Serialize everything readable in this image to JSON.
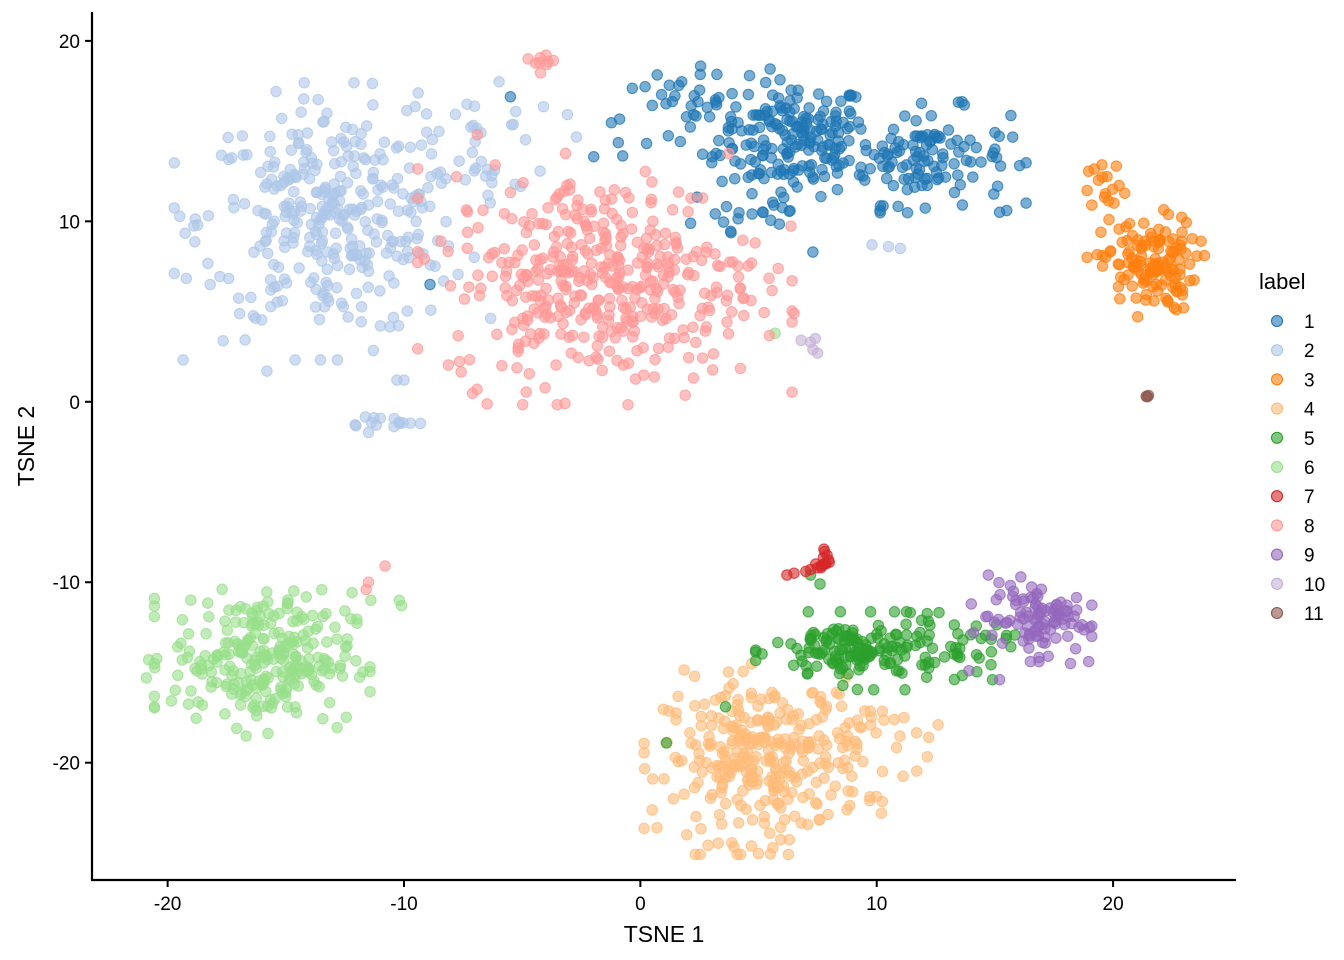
{
  "chart_data": {
    "type": "scatter",
    "title": "",
    "xlabel": "TSNE 1",
    "ylabel": "TSNE 2",
    "xlim": [
      -23.2,
      25.2
    ],
    "ylim": [
      -26.5,
      21.6
    ],
    "x_ticks": [
      -20,
      -10,
      0,
      10,
      20
    ],
    "y_ticks": [
      -20,
      -10,
      0,
      10,
      20
    ],
    "x_tick_labels": [
      "-20",
      "-10",
      "0",
      "10",
      "20"
    ],
    "y_tick_labels": [
      "-20",
      "-10",
      "0",
      "10",
      "20"
    ],
    "grid": false,
    "legend": {
      "title": "label",
      "placement": "right"
    },
    "point_opacity": 0.6,
    "series": [
      {
        "name": "1",
        "color": "#1f77b4",
        "clusters": [
          {
            "cx": 6.5,
            "cy": 14.6,
            "sx": 1.6,
            "sy": 1.6,
            "n": 170
          },
          {
            "cx": 12.0,
            "cy": 13.6,
            "sx": 1.8,
            "sy": 1.3,
            "n": 120
          },
          {
            "cx": 2.0,
            "cy": 15.8,
            "sx": 2.0,
            "sy": 1.2,
            "n": 45
          },
          {
            "cx": 4.5,
            "cy": 10.5,
            "sx": 1.5,
            "sy": 1.0,
            "n": 20
          }
        ],
        "points": [
          [
            -5.5,
            16.9
          ],
          [
            -8.9,
            6.5
          ],
          [
            15.5,
            10.6
          ],
          [
            15.2,
            10.5
          ],
          [
            7.3,
            8.3
          ]
        ]
      },
      {
        "name": "2",
        "color": "#aec7e8",
        "clusters": [
          {
            "cx": -13.0,
            "cy": 10.0,
            "sx": 2.8,
            "sy": 3.2,
            "n": 330
          },
          {
            "cx": -7.0,
            "cy": 14.5,
            "sx": 1.8,
            "sy": 1.8,
            "n": 40
          },
          {
            "cx": -11.2,
            "cy": -1.1,
            "sx": 0.8,
            "sy": 0.2,
            "n": 12
          }
        ],
        "points": [
          [
            -18.2,
            6.5
          ],
          [
            -15.8,
            1.7
          ],
          [
            -10.3,
            1.2
          ],
          [
            -10.0,
            1.2
          ],
          [
            9.8,
            8.7
          ],
          [
            10.5,
            8.6
          ],
          [
            11.0,
            8.5
          ],
          [
            -11.5,
            -1.7
          ],
          [
            -10.2,
            -1.2
          ],
          [
            -9.3,
            -1.2
          ]
        ]
      },
      {
        "name": "3",
        "color": "#ff7f0e",
        "clusters": [
          {
            "cx": 21.5,
            "cy": 7.6,
            "sx": 1.0,
            "sy": 1.3,
            "n": 130
          },
          {
            "cx": 19.8,
            "cy": 11.6,
            "sx": 0.4,
            "sy": 0.8,
            "n": 14
          }
        ],
        "points": [
          [
            22.9,
            8.9
          ],
          [
            22.7,
            6.1
          ],
          [
            19.2,
            12.9
          ],
          [
            19.1,
            10.9
          ],
          [
            18.9,
            8.0
          ]
        ]
      },
      {
        "name": "4",
        "color": "#ffbb78",
        "clusters": [
          {
            "cx": 5.2,
            "cy": -19.8,
            "sx": 2.1,
            "sy": 2.2,
            "n": 300
          },
          {
            "cx": 9.5,
            "cy": -18.8,
            "sx": 1.1,
            "sy": 1.2,
            "n": 30
          }
        ],
        "points": [
          [
            1.0,
            -20.9
          ],
          [
            1.4,
            -22.0
          ],
          [
            12.6,
            -17.9
          ],
          [
            12.2,
            -18.6
          ],
          [
            10.2,
            -22.8
          ]
        ]
      },
      {
        "name": "5",
        "color": "#2ca02c",
        "clusters": [
          {
            "cx": 9.2,
            "cy": -13.8,
            "sx": 1.8,
            "sy": 0.9,
            "n": 150
          },
          {
            "cx": 13.2,
            "cy": -13.6,
            "sx": 1.2,
            "sy": 0.8,
            "n": 35
          }
        ],
        "points": [
          [
            1.1,
            -18.9
          ],
          [
            3.6,
            -16.9
          ],
          [
            7.2,
            -9.6
          ],
          [
            7.6,
            -10.1
          ],
          [
            14.9,
            -15.4
          ]
        ]
      },
      {
        "name": "6",
        "color": "#98df8a",
        "clusters": [
          {
            "cx": -16.0,
            "cy": -14.2,
            "sx": 1.9,
            "sy": 1.8,
            "n": 270
          }
        ],
        "points": [
          [
            -20.9,
            -15.3
          ],
          [
            -20.8,
            -14.3
          ],
          [
            -12.6,
            -15.2
          ],
          [
            -10.2,
            -11.0
          ],
          [
            -10.1,
            -11.3
          ],
          [
            -11.4,
            -11.0
          ],
          [
            5.7,
            3.8
          ]
        ]
      },
      {
        "name": "7",
        "color": "#d62728",
        "clusters": [
          {
            "cx": 7.7,
            "cy": -8.8,
            "sx": 0.15,
            "sy": 0.3,
            "n": 10
          }
        ],
        "points": [
          [
            7.9,
            -8.5
          ],
          [
            7.5,
            -9.2
          ],
          [
            7.2,
            -9.3
          ],
          [
            7.0,
            -9.4
          ],
          [
            6.5,
            -9.5
          ],
          [
            6.2,
            -9.6
          ],
          [
            7.8,
            -8.3
          ]
        ]
      },
      {
        "name": "8",
        "color": "#ff9896",
        "clusters": [
          {
            "cx": -1.5,
            "cy": 6.8,
            "sx": 3.3,
            "sy": 2.9,
            "n": 420
          },
          {
            "cx": -4.3,
            "cy": 18.9,
            "sx": 0.3,
            "sy": 0.3,
            "n": 9
          }
        ],
        "points": [
          [
            -11.5,
            -10.0
          ],
          [
            -10.8,
            -9.1
          ],
          [
            -11.6,
            -10.4
          ],
          [
            -6.9,
            14.8
          ],
          [
            -5.5,
            11.6
          ],
          [
            6.5,
            4.9
          ]
        ]
      },
      {
        "name": "9",
        "color": "#9467bd",
        "clusters": [
          {
            "cx": 16.7,
            "cy": -12.0,
            "sx": 1.0,
            "sy": 1.0,
            "n": 100
          }
        ],
        "points": [
          [
            14.0,
            -11.2
          ],
          [
            14.1,
            -12.8
          ],
          [
            18.2,
            -14.5
          ],
          [
            15.2,
            -15.4
          ],
          [
            19.0,
            -12.5
          ],
          [
            13.9,
            -14.9
          ]
        ]
      },
      {
        "name": "10",
        "color": "#c5b0d5",
        "clusters": [],
        "points": [
          [
            6.8,
            3.4
          ],
          [
            7.2,
            3.3
          ],
          [
            7.3,
            2.9
          ],
          [
            7.5,
            2.7
          ],
          [
            7.4,
            3.5
          ]
        ]
      },
      {
        "name": "11",
        "color": "#8c564b",
        "clusters": [],
        "points": [
          [
            21.4,
            0.3
          ],
          [
            21.5,
            0.35
          ],
          [
            21.45,
            0.28
          ]
        ]
      }
    ]
  }
}
